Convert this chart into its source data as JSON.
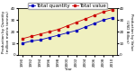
{
  "years": [
    1990,
    1992,
    1994,
    1996,
    1998,
    2000,
    2002,
    2004,
    2006,
    2008,
    2010
  ],
  "quantity": [
    10,
    12,
    13,
    15,
    17,
    19,
    21,
    24,
    27,
    30,
    32
  ],
  "value": [
    14,
    16,
    18,
    20,
    22,
    25,
    28,
    31,
    34,
    37,
    39
  ],
  "quantity_color": "#0000bb",
  "value_color": "#cc0000",
  "quantity_label": "Total quantity",
  "value_label": "Total value",
  "ylabel_left": "Production by Quantity\n(million metric tonnes)",
  "ylabel_right": "Production by Value\n(USD Billion)",
  "xlabel": "Year",
  "ylim_left": [
    0,
    40
  ],
  "ylim_right": [
    0,
    40
  ],
  "yticks": [
    0,
    10,
    20,
    30,
    40
  ],
  "plot_bg": "#f0f0c0",
  "fig_bg": "#ffffff",
  "legend_fontsize": 4.0,
  "axis_label_fontsize": 3.0,
  "tick_fontsize": 3.0,
  "marker": "s",
  "markersize": 1.5,
  "linewidth": 0.6
}
